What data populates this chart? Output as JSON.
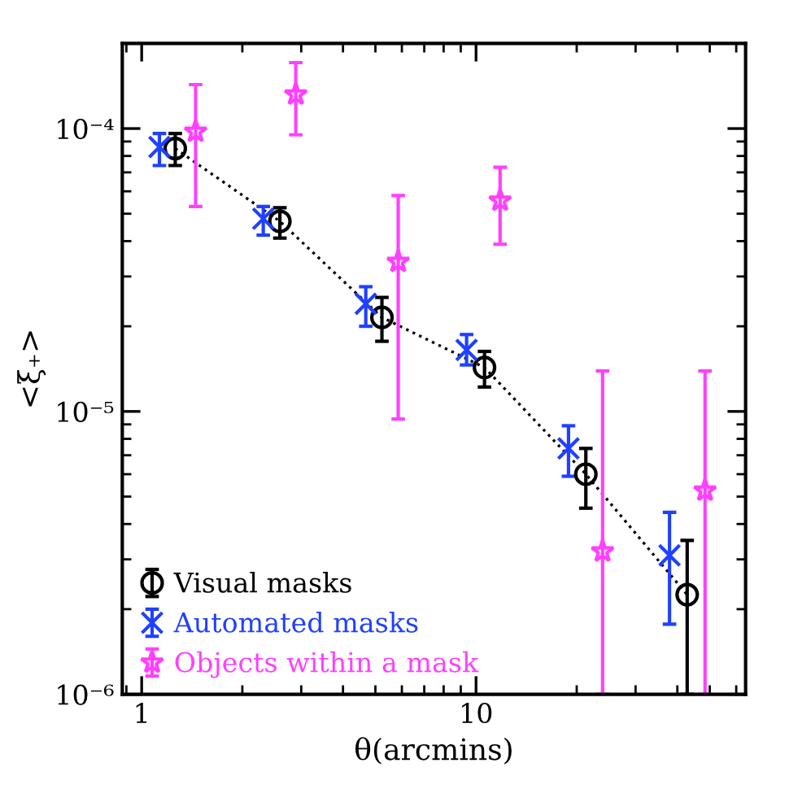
{
  "chart_data": {
    "type": "scatter",
    "xlabel": "θ(arcmins)",
    "ylabel": "<ξ₊>",
    "log": "xy",
    "xlim": [
      0.875,
      64
    ],
    "ylim": [
      1e-06,
      0.0002
    ],
    "xticks": [
      1,
      10
    ],
    "yticks": [
      {
        "value": 1e-06,
        "label": "10⁻⁶"
      },
      {
        "value": 1e-05,
        "label": "10⁻⁵"
      },
      {
        "value": 0.0001,
        "label": "10⁻⁴"
      }
    ],
    "grid": false,
    "legend": "lower left",
    "series": [
      {
        "type": "line",
        "color": "#000000",
        "line_style": "dotted",
        "marker": "none",
        "x": [
          1.26,
          2.59,
          5.23,
          10.6,
          21.3,
          42.8
        ],
        "values": [
          8.5e-05,
          4.7e-05,
          2.15e-05,
          1.43e-05,
          6e-06,
          2.25e-06
        ]
      },
      {
        "name": "Visual masks",
        "color": "#000000",
        "marker": "circle",
        "x": [
          1.26,
          2.59,
          5.23,
          10.6,
          21.3,
          42.8
        ],
        "values": [
          8.5e-05,
          4.7e-05,
          2.15e-05,
          1.43e-05,
          6e-06,
          2.25e-06
        ],
        "errors": [
          [
            7.4e-05,
            9.6e-05
          ],
          [
            4.1e-05,
            5.25e-05
          ],
          [
            1.77e-05,
            2.53e-05
          ],
          [
            1.22e-05,
            1.63e-05
          ],
          [
            4.55e-06,
            7.4e-06
          ],
          [
            1e-06,
            3.5e-06
          ]
        ]
      },
      {
        "name": "Automated masks",
        "color": "#2040ff",
        "marker": "cross",
        "x": [
          1.13,
          2.31,
          4.68,
          9.37,
          18.9,
          37.9
        ],
        "values": [
          8.6e-05,
          4.8e-05,
          2.4e-05,
          1.65e-05,
          7.4e-06,
          3.1e-06
        ],
        "errors": [
          [
            7.4e-05,
            9.6e-05
          ],
          [
            4.2e-05,
            5.3e-05
          ],
          [
            2e-05,
            2.76e-05
          ],
          [
            1.46e-05,
            1.87e-05
          ],
          [
            5.9e-06,
            8.9e-06
          ],
          [
            1.77e-06,
            4.4e-06
          ]
        ]
      },
      {
        "name": "Objects within a mask",
        "color": "#ff40ff",
        "marker": "star",
        "x": [
          1.45,
          2.89,
          5.85,
          11.8,
          23.9,
          48.4
        ],
        "values": [
          9.75e-05,
          0.000132,
          3.38e-05,
          5.56e-05,
          3.2e-06,
          5.25e-06
        ],
        "errors": [
          [
            5.3e-05,
            0.000143
          ],
          [
            9.5e-05,
            0.000171
          ],
          [
            9.4e-06,
            5.8e-05
          ],
          [
            3.9e-05,
            7.3e-05
          ],
          [
            1e-06,
            1.39e-05
          ],
          [
            1e-06,
            1.39e-05
          ]
        ]
      }
    ]
  }
}
